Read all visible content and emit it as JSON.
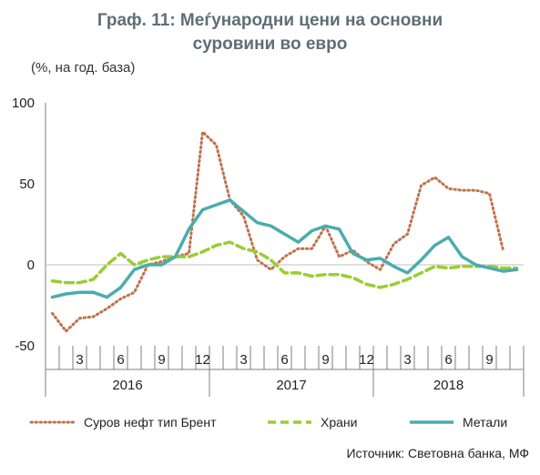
{
  "title_line1": "Граф. 11: Меѓународни цени на основни",
  "title_line2": "суровини  во евро",
  "units": "(%, на год. база)",
  "source": "Источник: Световна банка, МФ",
  "chart_data": {
    "type": "line",
    "ylim": [
      -50,
      100
    ],
    "yticks": [
      -50,
      0,
      50,
      100
    ],
    "grid": false,
    "legend_position": "bottom",
    "month_labels": [
      "",
      "",
      "3",
      "",
      "",
      "6",
      "",
      "",
      "9",
      "",
      "",
      "12",
      "",
      "",
      "3",
      "",
      "",
      "6",
      "",
      "",
      "9",
      "",
      "",
      "12",
      "",
      "",
      "3",
      "",
      "",
      "6",
      "",
      "",
      "9",
      "",
      ""
    ],
    "year_labels": [
      {
        "label": "2016",
        "start": 0,
        "end": 11
      },
      {
        "label": "2017",
        "start": 12,
        "end": 23
      },
      {
        "label": "2018",
        "start": 24,
        "end": 34
      }
    ],
    "series": [
      {
        "name": "Сурoв нефт тип Брент",
        "color": "#c0724a",
        "dash": "dotted",
        "values": [
          -30,
          -41,
          -33,
          -32,
          -27,
          -21,
          -17,
          0,
          2,
          5,
          7,
          82,
          74,
          40,
          30,
          3,
          -3,
          5,
          10,
          10,
          24,
          5,
          9,
          2,
          -3,
          13,
          19,
          49,
          54,
          47,
          46,
          46,
          44,
          9,
          null
        ]
      },
      {
        "name": "Храни",
        "color": "#9acd32",
        "dash": "dashed",
        "values": [
          -10,
          -11,
          -11,
          -9,
          0,
          7,
          0,
          3,
          5,
          5,
          5,
          8,
          12,
          14,
          10,
          8,
          3,
          -5,
          -5,
          -7,
          -6,
          -6,
          -8,
          -12,
          -14,
          -12,
          -9,
          -5,
          -1,
          -2,
          -1,
          -1,
          -1,
          -2,
          -2
        ]
      },
      {
        "name": "Метали",
        "color": "#4aacaf",
        "dash": "solid",
        "values": [
          -20,
          -18,
          -17,
          -17,
          -20,
          -14,
          -3,
          0,
          0,
          5,
          22,
          34,
          37,
          40,
          33,
          26,
          24,
          19,
          14,
          21,
          24,
          22,
          7,
          3,
          4,
          -1,
          -5,
          3,
          12,
          17,
          5,
          0,
          -2,
          -4,
          -3
        ]
      }
    ]
  }
}
